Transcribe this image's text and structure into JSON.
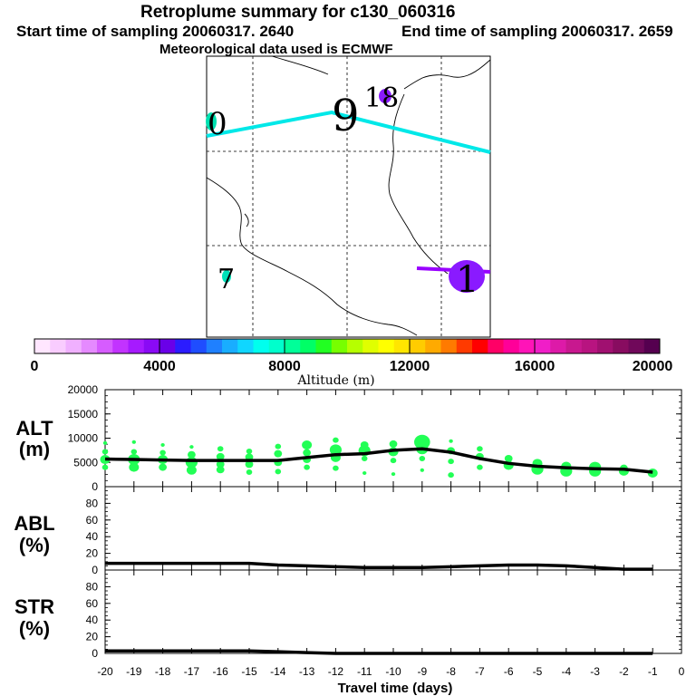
{
  "header": {
    "title": "Retroplume summary for c130_060316",
    "start_label": "Start time of sampling 20060317.  2640",
    "end_label": "End time of sampling 20060317.  2659",
    "met_label": "Meteorological data used is ECMWF"
  },
  "map": {
    "day_labels": [
      "0",
      "9",
      "18",
      "7",
      "1"
    ],
    "track_color": "#00e8e8",
    "track_color2": "#9900ff"
  },
  "colorbar": {
    "title": "Altitude (m)",
    "tick_labels": [
      "0",
      "4000",
      "8000",
      "12000",
      "16000",
      "20000"
    ],
    "colors": [
      "#ffe6ff",
      "#f9ccff",
      "#f0b0ff",
      "#e58aff",
      "#d65cff",
      "#c233ff",
      "#a61aff",
      "#8a0af5",
      "#6a00e8",
      "#2b1cff",
      "#1f4dff",
      "#1f80ff",
      "#19adff",
      "#10d6ff",
      "#00ffee",
      "#00ffcc",
      "#00ff99",
      "#00ff66",
      "#22ff22",
      "#77ff00",
      "#b6ff00",
      "#e0ff00",
      "#ffff00",
      "#ffe600",
      "#ffcc00",
      "#ffaa00",
      "#ff7a00",
      "#ff3a00",
      "#ff0000",
      "#ff0066",
      "#ff0099",
      "#ff14b8",
      "#f01ec8",
      "#dd1aa8",
      "#c8188f",
      "#b81480",
      "#a01070",
      "#880c60",
      "#70085a",
      "#55004f"
    ]
  },
  "chart_data": {
    "type": "line",
    "x": [
      -20,
      -19,
      -18,
      -17,
      -16,
      -15,
      -14,
      -13,
      -12,
      -11,
      -10,
      -9,
      -8,
      -7,
      -6,
      -5,
      -4,
      -3,
      -2,
      -1
    ],
    "xlim": [
      -20,
      0
    ],
    "xticks": [
      "-20",
      "-19",
      "-18",
      "-17",
      "-16",
      "-15",
      "-14",
      "-13",
      "-12",
      "-11",
      "-10",
      "-9",
      "-8",
      "-7",
      "-6",
      "-5",
      "-4",
      "-3",
      "-2",
      "-1",
      "0"
    ],
    "xlabel": "Travel time (days)",
    "panels": [
      {
        "label": "ALT",
        "unit": "(m)",
        "ylim": [
          0,
          20000
        ],
        "yticks": [
          "0",
          "5000",
          "10000",
          "15000",
          "20000"
        ],
        "values": [
          5700,
          5600,
          5500,
          5400,
          5400,
          5400,
          5400,
          6000,
          6600,
          6800,
          7500,
          7800,
          7100,
          5800,
          4800,
          4200,
          3900,
          3700,
          3600,
          3000
        ],
        "plume_color": "#22ff55",
        "plume_points": [
          [
            -20,
            4000,
            3
          ],
          [
            -20,
            5600,
            5
          ],
          [
            -20,
            7200,
            3
          ],
          [
            -20,
            9000,
            2
          ],
          [
            -19,
            4000,
            5
          ],
          [
            -19,
            5600,
            6
          ],
          [
            -19,
            7200,
            3
          ],
          [
            -19,
            9200,
            2
          ],
          [
            -18,
            4000,
            4
          ],
          [
            -18,
            5600,
            5
          ],
          [
            -18,
            7000,
            3
          ],
          [
            -18,
            8600,
            2
          ],
          [
            -17,
            3400,
            5
          ],
          [
            -17,
            5000,
            6
          ],
          [
            -17,
            6600,
            4
          ],
          [
            -17,
            8200,
            2
          ],
          [
            -16,
            3500,
            4
          ],
          [
            -16,
            4600,
            4
          ],
          [
            -16,
            6200,
            4
          ],
          [
            -16,
            7800,
            3
          ],
          [
            -15,
            3000,
            3
          ],
          [
            -15,
            4600,
            4
          ],
          [
            -15,
            6100,
            4
          ],
          [
            -15,
            7300,
            3
          ],
          [
            -14,
            3100,
            3
          ],
          [
            -14,
            5000,
            4
          ],
          [
            -14,
            6800,
            4
          ],
          [
            -14,
            8300,
            3
          ],
          [
            -13,
            4000,
            3
          ],
          [
            -13,
            5600,
            4
          ],
          [
            -13,
            7000,
            4
          ],
          [
            -13,
            8600,
            5
          ],
          [
            -12,
            3800,
            3
          ],
          [
            -12,
            6000,
            5
          ],
          [
            -12,
            7600,
            6
          ],
          [
            -12,
            9600,
            3
          ],
          [
            -11,
            2800,
            2
          ],
          [
            -11,
            5800,
            3
          ],
          [
            -11,
            7400,
            6
          ],
          [
            -11,
            8600,
            4
          ],
          [
            -10,
            2600,
            2
          ],
          [
            -10,
            5400,
            3
          ],
          [
            -10,
            7200,
            5
          ],
          [
            -10,
            8800,
            4
          ],
          [
            -9,
            3400,
            2
          ],
          [
            -9,
            5800,
            3
          ],
          [
            -9,
            7800,
            6
          ],
          [
            -9,
            9200,
            8
          ],
          [
            -8,
            2400,
            3
          ],
          [
            -8,
            5200,
            3
          ],
          [
            -8,
            7400,
            4
          ],
          [
            -8,
            9400,
            2
          ],
          [
            -7,
            4000,
            3
          ],
          [
            -7,
            6200,
            4
          ],
          [
            -7,
            7800,
            3
          ],
          [
            -6,
            4400,
            5
          ],
          [
            -6,
            5800,
            4
          ],
          [
            -5,
            3600,
            6
          ],
          [
            -5,
            4800,
            5
          ],
          [
            -4,
            3200,
            6
          ],
          [
            -4,
            4200,
            5
          ],
          [
            -3,
            3200,
            6
          ],
          [
            -3,
            4000,
            6
          ],
          [
            -2,
            3200,
            5
          ],
          [
            -2,
            3800,
            4
          ],
          [
            -1,
            2800,
            5
          ]
        ]
      },
      {
        "label": "ABL",
        "unit": "(%)",
        "ylim": [
          0,
          100
        ],
        "yticks": [
          "0",
          "20",
          "40",
          "60",
          "80"
        ],
        "values": [
          8,
          8,
          8,
          8,
          8,
          8,
          6,
          5,
          4,
          3,
          3,
          3,
          4,
          5,
          6,
          6,
          5,
          3,
          1,
          1
        ]
      },
      {
        "label": "STR",
        "unit": "(%)",
        "ylim": [
          0,
          100
        ],
        "yticks": [
          "0",
          "20",
          "40",
          "60",
          "80"
        ],
        "values": [
          3,
          3,
          3,
          3,
          3,
          3,
          2,
          1,
          0,
          0,
          0,
          0,
          0,
          0,
          0,
          0,
          0,
          0,
          0,
          0
        ]
      }
    ]
  }
}
